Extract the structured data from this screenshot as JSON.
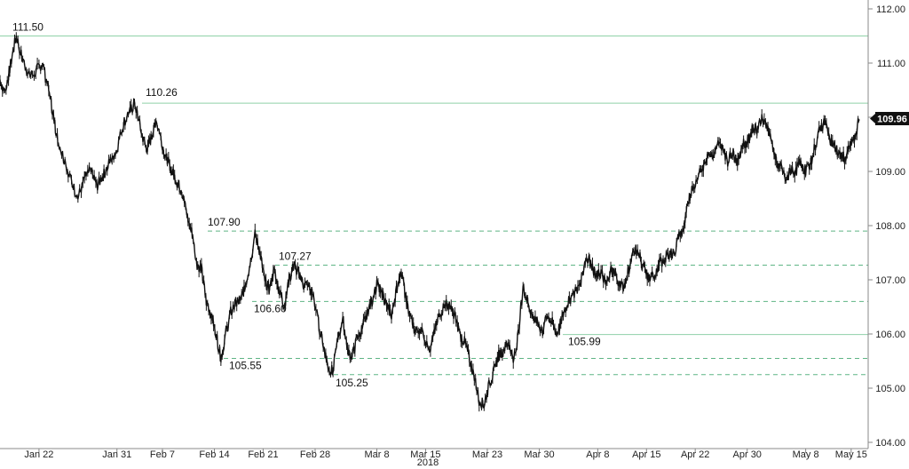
{
  "chart_data": {
    "type": "line",
    "style": "OHLC candlestick-like intraday price line",
    "y_range": [
      104.0,
      112.0
    ],
    "y_ticks": [
      "104.00",
      "105.00",
      "106.00",
      "107.00",
      "108.00",
      "109.00",
      "110.00",
      "111.00",
      "112.00"
    ],
    "x_ticks": [
      "Jan 22",
      "Jan 31",
      "Feb 7",
      "Feb 14",
      "Feb 21",
      "Feb 28",
      "Mar 8",
      "Mar 15",
      "Mar 23",
      "Mar 30",
      "Apr 8",
      "Apr 15",
      "Apr 22",
      "Apr 30",
      "May 8",
      "May 15"
    ],
    "x_year_label": "2018",
    "last_value": "109.96",
    "grid": "off",
    "series_color": "#111111",
    "solid_line_color": "#8fd1a8",
    "dashed_line_color": "#5fb585",
    "levels": [
      {
        "label": "111.50",
        "value": 111.5,
        "style": "solid"
      },
      {
        "label": "110.26",
        "value": 110.26,
        "style": "solid"
      },
      {
        "label": "107.90",
        "value": 107.9,
        "style": "dashed"
      },
      {
        "label": "107.27",
        "value": 107.27,
        "style": "dashed"
      },
      {
        "label": "106.60",
        "value": 106.6,
        "style": "dashed"
      },
      {
        "label": "105.99",
        "value": 105.99,
        "style": "solid"
      },
      {
        "label": "105.55",
        "value": 105.55,
        "style": "dashed"
      },
      {
        "label": "105.25",
        "value": 105.25,
        "style": "dashed"
      }
    ],
    "series": [
      {
        "values": [
          [
            0,
            110.7
          ],
          [
            0.3,
            110.45
          ],
          [
            0.6,
            110.9
          ],
          [
            1.0,
            111.5
          ],
          [
            1.4,
            111.05
          ],
          [
            1.8,
            110.75
          ],
          [
            2.2,
            110.85
          ],
          [
            2.6,
            111.0
          ],
          [
            3.0,
            110.5
          ],
          [
            3.3,
            110.0
          ],
          [
            3.6,
            109.5
          ],
          [
            4.0,
            109.2
          ],
          [
            4.4,
            108.8
          ],
          [
            4.8,
            108.5
          ],
          [
            5.2,
            108.9
          ],
          [
            5.6,
            109.0
          ],
          [
            6.0,
            108.75
          ],
          [
            6.4,
            108.95
          ],
          [
            6.8,
            109.2
          ],
          [
            7.2,
            109.4
          ],
          [
            7.6,
            109.9
          ],
          [
            8.0,
            110.1
          ],
          [
            8.3,
            110.26
          ],
          [
            8.6,
            109.85
          ],
          [
            9.0,
            109.4
          ],
          [
            9.3,
            109.6
          ],
          [
            9.6,
            109.95
          ],
          [
            10.0,
            109.5
          ],
          [
            10.3,
            109.2
          ],
          [
            10.6,
            109.0
          ],
          [
            10.9,
            108.8
          ],
          [
            11.2,
            108.65
          ],
          [
            11.5,
            108.2
          ],
          [
            11.8,
            107.9
          ],
          [
            12.1,
            107.3
          ],
          [
            12.4,
            107.2
          ],
          [
            12.7,
            106.6
          ],
          [
            13.0,
            106.4
          ],
          [
            13.3,
            106.0
          ],
          [
            13.6,
            105.55
          ],
          [
            13.9,
            106.0
          ],
          [
            14.2,
            106.4
          ],
          [
            14.5,
            106.55
          ],
          [
            14.8,
            106.6
          ],
          [
            15.1,
            106.9
          ],
          [
            15.4,
            107.3
          ],
          [
            15.7,
            107.85
          ],
          [
            16.0,
            107.5
          ],
          [
            16.3,
            107.0
          ],
          [
            16.6,
            106.8
          ],
          [
            16.9,
            107.2
          ],
          [
            17.2,
            106.8
          ],
          [
            17.5,
            106.5
          ],
          [
            17.8,
            107.0
          ],
          [
            18.1,
            107.27
          ],
          [
            18.4,
            107.1
          ],
          [
            18.7,
            106.9
          ],
          [
            19.0,
            106.9
          ],
          [
            19.3,
            106.7
          ],
          [
            19.6,
            106.2
          ],
          [
            19.9,
            105.8
          ],
          [
            20.2,
            105.4
          ],
          [
            20.5,
            105.3
          ],
          [
            20.8,
            105.9
          ],
          [
            21.1,
            106.3
          ],
          [
            21.4,
            105.7
          ],
          [
            21.7,
            105.6
          ],
          [
            22.0,
            105.95
          ],
          [
            22.3,
            106.1
          ],
          [
            22.6,
            106.4
          ],
          [
            22.9,
            106.6
          ],
          [
            23.2,
            106.9
          ],
          [
            23.5,
            106.75
          ],
          [
            23.8,
            106.55
          ],
          [
            24.1,
            106.35
          ],
          [
            24.4,
            106.8
          ],
          [
            24.7,
            107.2
          ],
          [
            25.0,
            106.6
          ],
          [
            25.3,
            106.3
          ],
          [
            25.6,
            106.0
          ],
          [
            25.9,
            106.1
          ],
          [
            26.2,
            105.9
          ],
          [
            26.5,
            105.75
          ],
          [
            26.8,
            106.1
          ],
          [
            27.1,
            106.4
          ],
          [
            27.4,
            106.55
          ],
          [
            27.7,
            106.5
          ],
          [
            28.0,
            106.35
          ],
          [
            28.3,
            106.0
          ],
          [
            28.6,
            105.85
          ],
          [
            28.9,
            105.55
          ],
          [
            29.2,
            105.25
          ],
          [
            29.5,
            104.75
          ],
          [
            29.8,
            104.7
          ],
          [
            30.1,
            105.05
          ],
          [
            30.4,
            105.3
          ],
          [
            30.7,
            105.6
          ],
          [
            31.0,
            105.7
          ],
          [
            31.3,
            105.85
          ],
          [
            31.6,
            105.5
          ],
          [
            31.9,
            106.0
          ],
          [
            32.2,
            106.85
          ],
          [
            32.5,
            106.6
          ],
          [
            32.8,
            106.3
          ],
          [
            33.1,
            106.2
          ],
          [
            33.4,
            106.05
          ],
          [
            33.7,
            106.35
          ],
          [
            34.0,
            106.2
          ],
          [
            34.3,
            105.99
          ],
          [
            34.6,
            106.3
          ],
          [
            34.9,
            106.55
          ],
          [
            35.2,
            106.7
          ],
          [
            35.5,
            106.8
          ],
          [
            35.8,
            107.0
          ],
          [
            36.1,
            107.45
          ],
          [
            36.4,
            107.3
          ],
          [
            36.7,
            107.05
          ],
          [
            37.0,
            107.15
          ],
          [
            37.3,
            106.9
          ],
          [
            37.6,
            107.2
          ],
          [
            37.9,
            107.1
          ],
          [
            38.2,
            106.85
          ],
          [
            38.5,
            106.95
          ],
          [
            38.8,
            107.3
          ],
          [
            39.1,
            107.6
          ],
          [
            39.4,
            107.4
          ],
          [
            39.7,
            107.15
          ],
          [
            40.0,
            107.0
          ],
          [
            40.3,
            107.1
          ],
          [
            40.6,
            107.3
          ],
          [
            40.9,
            107.35
          ],
          [
            41.2,
            107.5
          ],
          [
            41.5,
            107.45
          ],
          [
            41.8,
            107.8
          ],
          [
            42.1,
            107.95
          ],
          [
            42.4,
            108.5
          ],
          [
            42.7,
            108.75
          ],
          [
            43.0,
            108.9
          ],
          [
            43.3,
            109.1
          ],
          [
            43.6,
            109.35
          ],
          [
            43.9,
            109.3
          ],
          [
            44.2,
            109.5
          ],
          [
            44.5,
            109.4
          ],
          [
            44.8,
            109.2
          ],
          [
            45.1,
            109.35
          ],
          [
            45.4,
            109.2
          ],
          [
            45.7,
            109.5
          ],
          [
            46.0,
            109.55
          ],
          [
            46.3,
            109.75
          ],
          [
            46.6,
            109.8
          ],
          [
            46.9,
            109.95
          ],
          [
            47.2,
            109.85
          ],
          [
            47.5,
            109.55
          ],
          [
            47.8,
            109.2
          ],
          [
            48.1,
            109.05
          ],
          [
            48.4,
            108.8
          ],
          [
            48.7,
            109.05
          ],
          [
            49.0,
            109.0
          ],
          [
            49.3,
            109.2
          ],
          [
            49.6,
            109.0
          ],
          [
            49.9,
            109.15
          ],
          [
            50.2,
            109.5
          ],
          [
            50.5,
            109.8
          ],
          [
            50.8,
            109.9
          ],
          [
            51.1,
            109.6
          ],
          [
            51.4,
            109.45
          ],
          [
            51.7,
            109.3
          ],
          [
            52.0,
            109.25
          ],
          [
            52.3,
            109.45
          ],
          [
            52.6,
            109.6
          ],
          [
            52.9,
            109.96
          ]
        ]
      }
    ]
  }
}
